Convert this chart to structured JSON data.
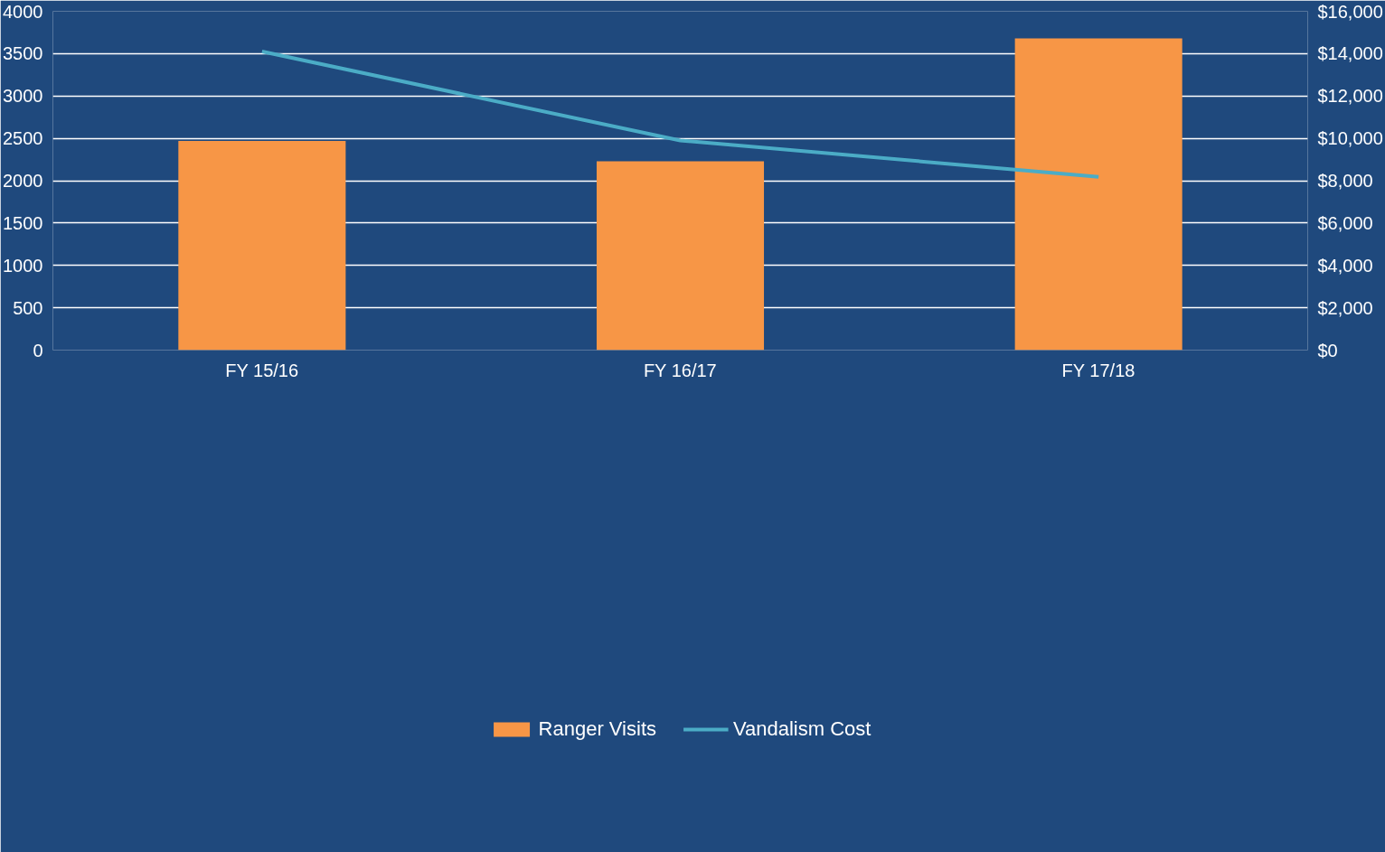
{
  "chart_data": {
    "type": "bar",
    "categories": [
      "FY 15/16",
      "FY 16/17",
      "FY 17/18"
    ],
    "series": [
      {
        "name": "Ranger Visits",
        "color": "#f79646",
        "values": [
          2470,
          2230,
          3680
        ]
      },
      {
        "name": "Vandalism Cost",
        "color": "#4bacc6",
        "type": "line",
        "axis": "y2",
        "values": [
          14100,
          9900,
          8180
        ]
      }
    ],
    "ylim": [
      0,
      4000
    ],
    "yticks": [
      0,
      500,
      1000,
      1500,
      2000,
      2500,
      3000,
      3500,
      4000
    ],
    "y2lim": [
      0,
      16000
    ],
    "y2ticks": [
      {
        "value": 0,
        "label": "$0"
      },
      {
        "value": 2000,
        "label": "$2,000"
      },
      {
        "value": 4000,
        "label": "$4,000"
      },
      {
        "value": 6000,
        "label": "$6,000"
      },
      {
        "value": 8000,
        "label": "$8,000"
      },
      {
        "value": 10000,
        "label": "$10,000"
      },
      {
        "value": 12000,
        "label": "$12,000"
      },
      {
        "value": 14000,
        "label": "$14,000"
      },
      {
        "value": 16000,
        "label": "$16,000"
      }
    ],
    "grid": "y",
    "legend": "bottom",
    "marker": "none",
    "line_style": "solid"
  }
}
